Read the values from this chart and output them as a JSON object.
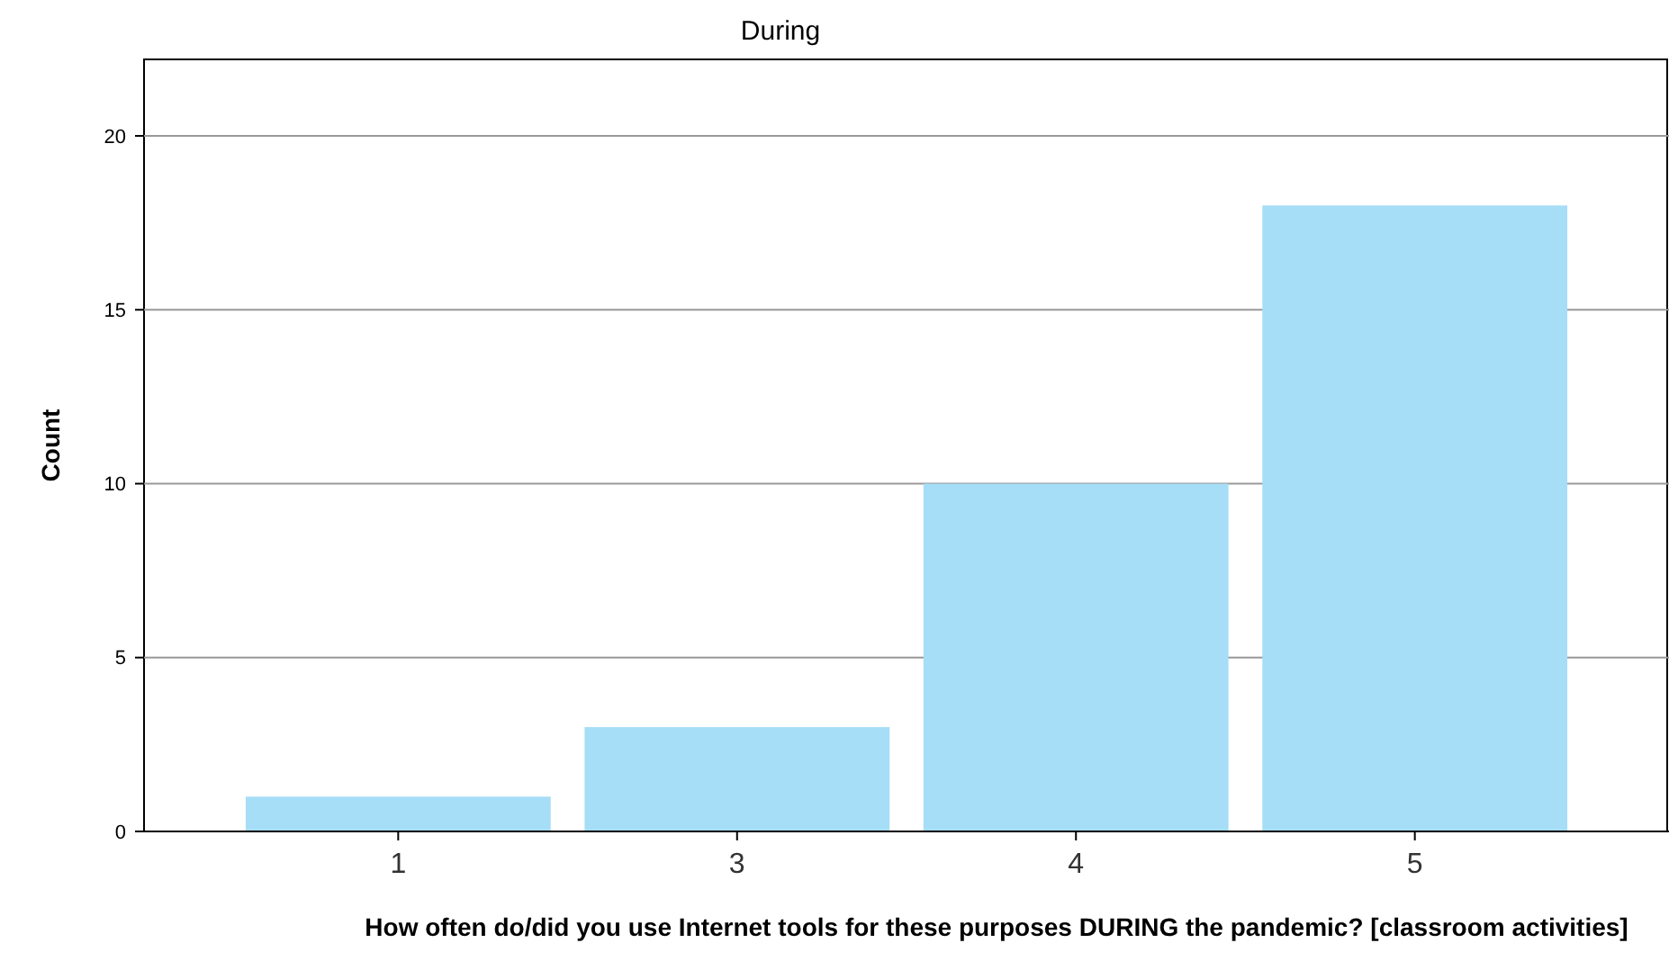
{
  "chart_data": {
    "type": "bar",
    "title": "During",
    "xlabel": "How often do/did you use Internet tools for these purposes DURING the pandemic?  [classroom activities]",
    "ylabel": "Count",
    "categories": [
      "1",
      "3",
      "4",
      "5"
    ],
    "values": [
      1,
      3,
      10,
      18
    ],
    "color": "#a6ddf7",
    "ylim": [
      0,
      22.2
    ],
    "yticks": [
      0,
      5,
      10,
      15,
      20
    ],
    "grid": "y"
  }
}
